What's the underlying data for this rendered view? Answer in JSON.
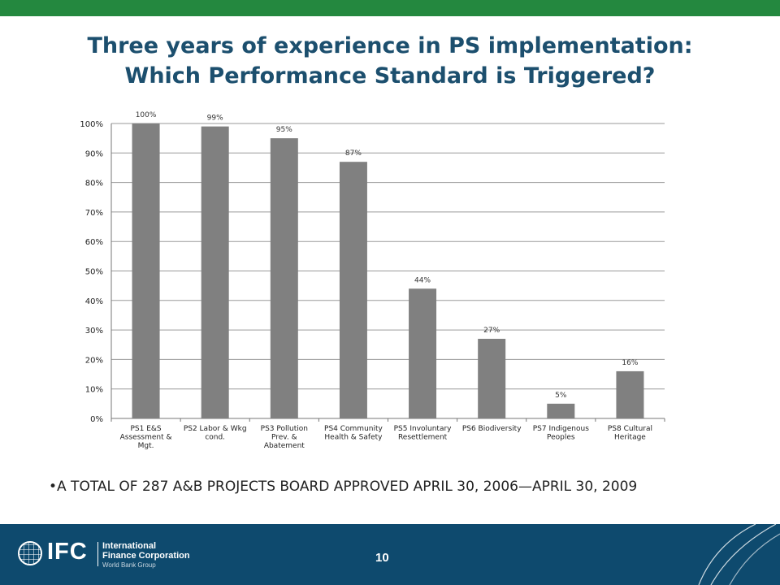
{
  "slide": {
    "title_line1": "Three years of experience in PS implementation:",
    "title_line2": "Which Performance Standard is Triggered?",
    "note": "•A TOTAL OF 287 A&B PROJECTS BOARD APPROVED APRIL 30, 2006—APRIL 30, 2009",
    "page_number": "10"
  },
  "logo": {
    "text": "IFC",
    "name_line1": "International",
    "name_line2": "Finance Corporation",
    "subtitle": "World Bank Group"
  },
  "colors": {
    "top_bar": "#24883f",
    "title": "#1c4f6e",
    "footer": "#0e4a6e",
    "bar": "#808080",
    "grid": "#9a9a9a"
  },
  "chart_data": {
    "type": "bar",
    "categories": [
      [
        "PS1 E&S",
        "Assessment &",
        "Mgt."
      ],
      [
        "PS2 Labor & Wkg",
        "cond."
      ],
      [
        "PS3 Pollution",
        "Prev. &",
        "Abatement"
      ],
      [
        "PS4 Community",
        "Health & Safety"
      ],
      [
        "PS5 Involuntary",
        "Resettlement"
      ],
      [
        "PS6 Biodiversity"
      ],
      [
        "PS7 Indigenous",
        "Peoples"
      ],
      [
        "PS8 Cultural",
        "Heritage"
      ]
    ],
    "values": [
      100,
      99,
      95,
      87,
      44,
      27,
      5,
      16
    ],
    "data_labels": [
      "100%",
      "99%",
      "95%",
      "87%",
      "44%",
      "27%",
      "5%",
      "16%"
    ],
    "yticks": [
      "0%",
      "10%",
      "20%",
      "30%",
      "40%",
      "50%",
      "60%",
      "70%",
      "80%",
      "90%",
      "100%"
    ],
    "ylim": [
      0,
      100
    ],
    "grid": true,
    "legend": "none"
  }
}
